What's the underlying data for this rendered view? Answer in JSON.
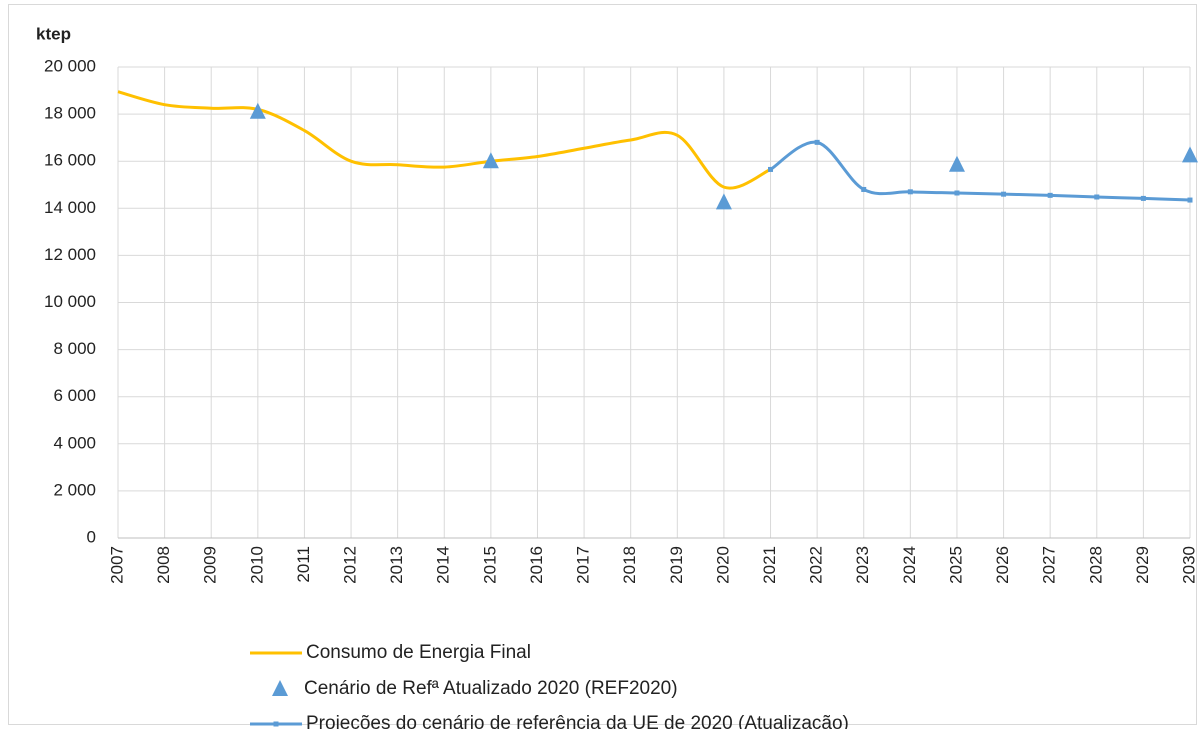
{
  "chart_data": {
    "type": "line",
    "y_axis_label": "ktep",
    "categories": [
      "2007",
      "2008",
      "2009",
      "2010",
      "2011",
      "2012",
      "2013",
      "2014",
      "2015",
      "2016",
      "2017",
      "2018",
      "2019",
      "2020",
      "2021",
      "2022",
      "2023",
      "2024",
      "2025",
      "2026",
      "2027",
      "2028",
      "2029",
      "2030"
    ],
    "ylim": [
      0,
      20000
    ],
    "yticks": [
      0,
      {
        "value": 2000,
        "label": "2 000"
      },
      {
        "value": 4000,
        "label": "4 000"
      },
      {
        "value": 6000,
        "label": "6 000"
      },
      {
        "value": 8000,
        "label": "8 000"
      },
      {
        "value": 10000,
        "label": "10 000"
      },
      {
        "value": 12000,
        "label": "12 000"
      },
      {
        "value": 14000,
        "label": "14 000"
      },
      {
        "value": 16000,
        "label": "16 000"
      },
      {
        "value": 18000,
        "label": "18 000"
      },
      {
        "value": 20000,
        "label": "20 000"
      }
    ],
    "grid": true,
    "legend": "bottom",
    "series": [
      {
        "name": "Consumo de Energia Final",
        "color": "#FFC000",
        "style": "line",
        "values": [
          18950,
          18400,
          18250,
          18200,
          17300,
          16000,
          15850,
          15750,
          16000,
          16200,
          16550,
          16900,
          17100,
          14900,
          15650,
          null,
          null,
          null,
          null,
          null,
          null,
          null,
          null,
          null
        ]
      },
      {
        "name": "Cenário de Refª Atualizado 2020 (REF2020)",
        "color": "#5B9BD5",
        "style": "triangle",
        "values": [
          null,
          null,
          null,
          18100,
          null,
          null,
          null,
          null,
          16000,
          null,
          null,
          null,
          null,
          14250,
          null,
          null,
          null,
          null,
          15850,
          null,
          null,
          null,
          null,
          16250
        ]
      },
      {
        "name": "Projeções do cenário de referência da UE de 2020 (Atualização)",
        "color": "#5B9BD5",
        "style": "line-marker",
        "values": [
          null,
          null,
          null,
          null,
          null,
          null,
          null,
          null,
          null,
          null,
          null,
          null,
          null,
          null,
          15650,
          16800,
          14800,
          14700,
          14650,
          14600,
          14550,
          14480,
          14420,
          14350
        ]
      }
    ]
  }
}
